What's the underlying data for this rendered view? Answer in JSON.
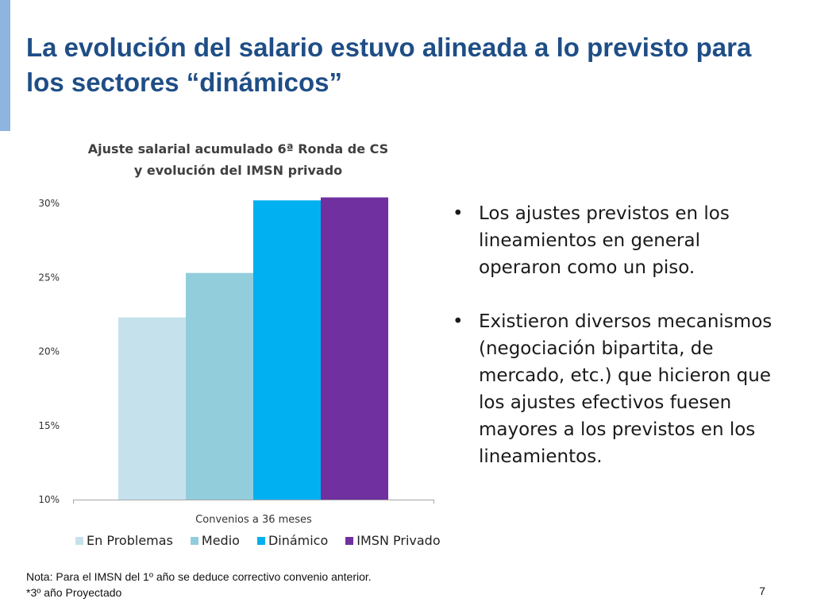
{
  "slide": {
    "title": "La evolución del salario estuvo alineada a lo previsto para los sectores “dinámicos”",
    "accent_color": "#8fb4de",
    "title_color": "#1f4e86",
    "page_number": "7"
  },
  "chart_data": {
    "type": "bar",
    "title_line1": "Ajuste salarial acumulado 6ª Ronda de CS",
    "title_line2": "y evolución del IMSN privado",
    "categories": [
      "Convenios a 36 meses"
    ],
    "series": [
      {
        "name": "En Problemas",
        "values": [
          22.3
        ],
        "color": "#c5e2ec"
      },
      {
        "name": "Medio",
        "values": [
          25.3
        ],
        "color": "#92cddc"
      },
      {
        "name": "Dinámico",
        "values": [
          30.2
        ],
        "color": "#00b0f0"
      },
      {
        "name": "IMSN Privado",
        "values": [
          30.4
        ],
        "color": "#7030a0"
      }
    ],
    "ylim": [
      10,
      30
    ],
    "yticks": [
      "10%",
      "15%",
      "20%",
      "25%",
      "30%"
    ],
    "grid": false,
    "legend_position": "bottom"
  },
  "bullets": [
    "Los ajustes previstos en los lineamientos en general operaron como un piso.",
    "Existieron diversos mecanismos (negociación bipartita, de mercado, etc.) que hicieron que los ajustes efectivos fuesen mayores a los previstos en los lineamientos."
  ],
  "bullet_symbol": "•",
  "notes": {
    "line1": "Nota: Para el IMSN del 1º año se deduce correctivo convenio anterior.",
    "line2": "*3º año Proyectado"
  }
}
